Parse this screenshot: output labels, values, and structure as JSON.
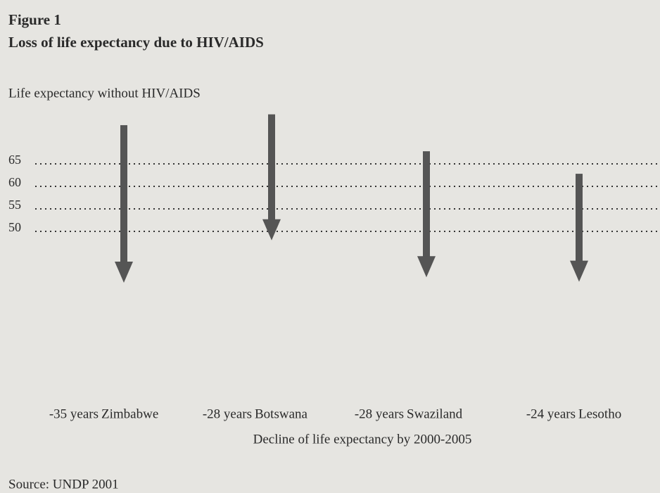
{
  "chart_data": {
    "type": "arrow",
    "title": "Figure 1",
    "subtitle": "Loss of life expectancy due to HIV/AIDS",
    "ylabel": "Life expectancy without HIV/AIDS",
    "xlabel": "Decline of life expectancy by 2000-2005",
    "source": "Source: UNDP 2001",
    "categories": [
      "Zimbabwe",
      "Botswana",
      "Swaziland",
      "Lesotho"
    ],
    "series": [
      {
        "name": "Life expectancy without HIV/AIDS",
        "color": "#555555",
        "values": [
          73.6,
          76,
          67.8,
          62.8
        ]
      }
    ],
    "values": [
      -35,
      -28,
      -28,
      -24
    ],
    "value_labels": [
      "-35 years",
      "-28 years",
      "-28 years",
      "-24 years"
    ],
    "ylim": [
      30,
      80
    ],
    "yticks": [
      65,
      60,
      55,
      50
    ],
    "grid": true
  }
}
